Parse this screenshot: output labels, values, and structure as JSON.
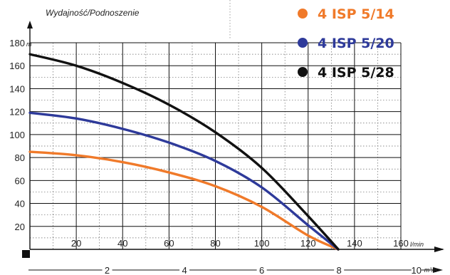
{
  "chart_data": {
    "type": "line",
    "title": "Wydajność/Podnoszenie",
    "ylabel_unit": "m",
    "xlabel_unit": "l/min",
    "x2label_unit": "m³/h",
    "ylim": [
      0,
      180
    ],
    "xlim": [
      0,
      160
    ],
    "y_ticks": [
      "20",
      "40",
      "60",
      "80",
      "100",
      "120",
      "140",
      "160",
      "180"
    ],
    "x_ticks": [
      "20",
      "40",
      "60",
      "80",
      "100",
      "120",
      "140",
      "160"
    ],
    "x2_ticks": [
      "2",
      "4",
      "6",
      "8",
      "10"
    ],
    "grid": true,
    "legend_placement": "top-right",
    "series": [
      {
        "name": "4 ISP 5/14",
        "color": "#f07a2a",
        "points": [
          [
            0,
            85
          ],
          [
            20,
            82
          ],
          [
            40,
            76
          ],
          [
            60,
            67
          ],
          [
            80,
            55
          ],
          [
            100,
            37
          ],
          [
            120,
            12
          ],
          [
            133,
            0
          ]
        ]
      },
      {
        "name": "4 ISP 5/20",
        "color": "#2e3a9a",
        "points": [
          [
            0,
            119
          ],
          [
            20,
            114
          ],
          [
            40,
            105
          ],
          [
            60,
            93
          ],
          [
            80,
            77
          ],
          [
            100,
            54
          ],
          [
            120,
            21
          ],
          [
            133,
            0
          ]
        ]
      },
      {
        "name": "4 ISP 5/28",
        "color": "#111111",
        "points": [
          [
            0,
            170
          ],
          [
            20,
            160
          ],
          [
            40,
            145
          ],
          [
            60,
            126
          ],
          [
            80,
            102
          ],
          [
            100,
            71
          ],
          [
            120,
            29
          ],
          [
            133,
            0
          ]
        ]
      }
    ]
  }
}
